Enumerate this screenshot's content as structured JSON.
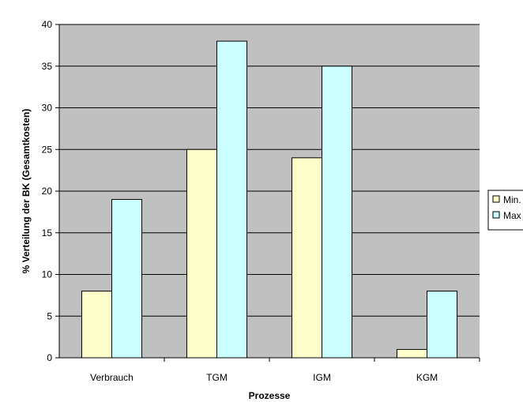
{
  "chart_data": {
    "type": "bar",
    "categories": [
      "Verbrauch",
      "TGM",
      "IGM",
      "KGM"
    ],
    "series": [
      {
        "name": "Min.",
        "values": [
          8,
          25,
          24,
          1
        ],
        "color": "#ffffcc"
      },
      {
        "name": "Max",
        "values": [
          19,
          38,
          35,
          8
        ],
        "color": "#ccffff"
      }
    ],
    "xlabel": "Prozesse",
    "ylabel": "% Verteilung der BK (Gesamtkosten)",
    "ylim": [
      0,
      40
    ],
    "yticks": [
      "0",
      "5",
      "10",
      "15",
      "20",
      "25",
      "30",
      "35",
      "40"
    ],
    "grid": true,
    "legend_position": "right",
    "plot_background": "#c0c0c0",
    "page_background": "#ffffff"
  }
}
